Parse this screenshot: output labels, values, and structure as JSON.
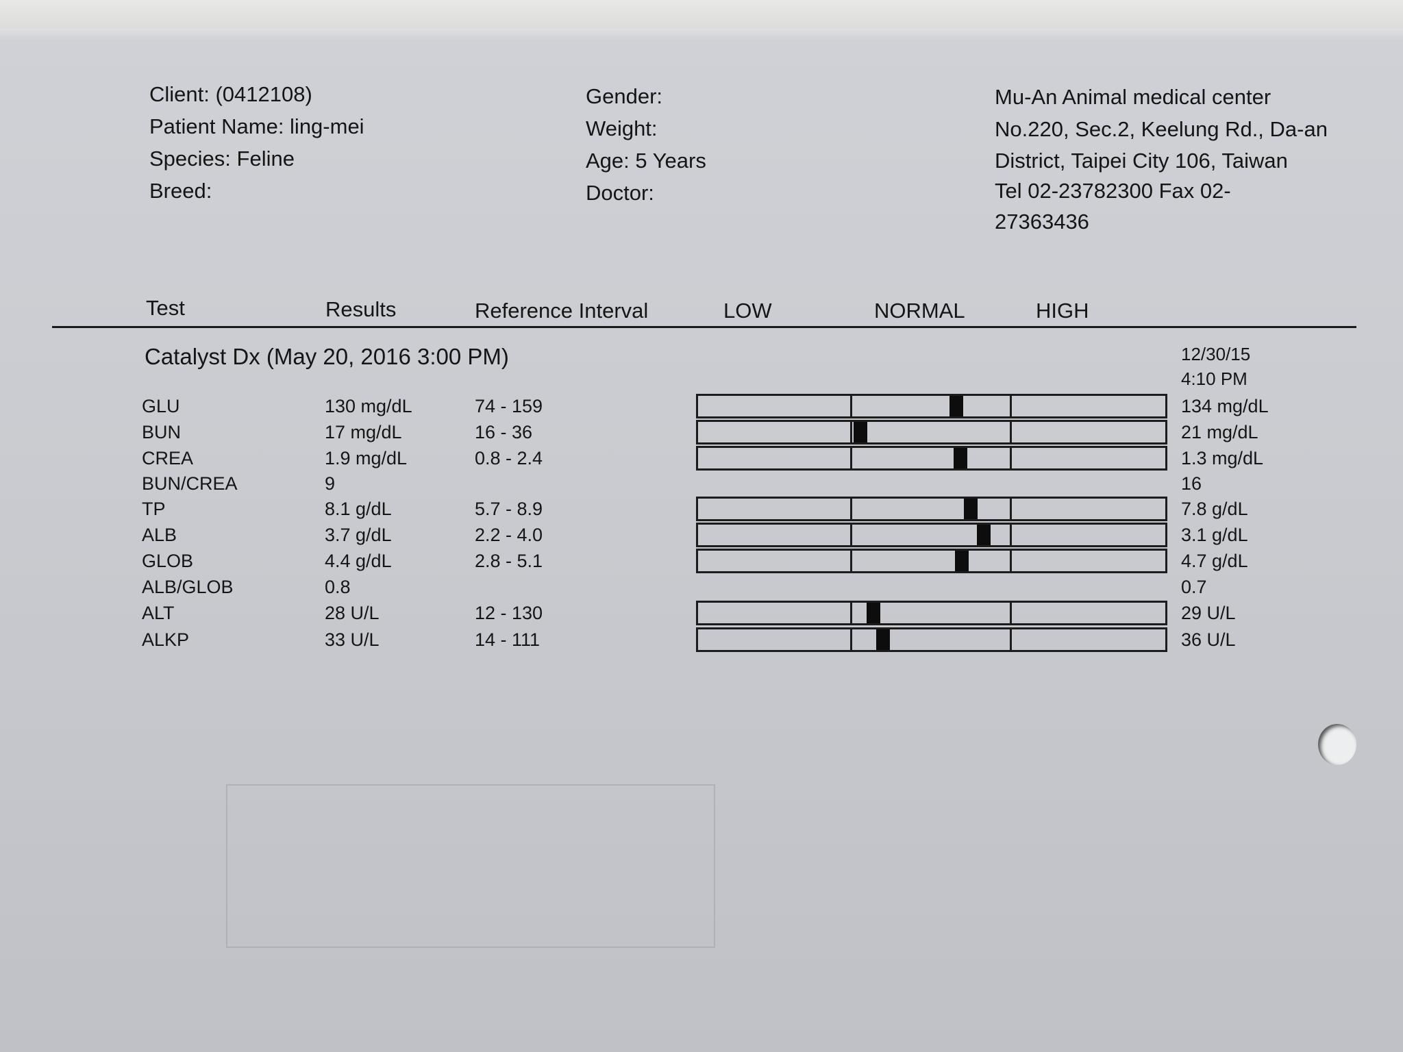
{
  "client_info": {
    "client": "Client:  (0412108)",
    "patient_name": "Patient Name:  ling-mei",
    "species": "Species:  Feline",
    "breed": "Breed:"
  },
  "patient_info": {
    "gender": "Gender:",
    "weight": "Weight:",
    "age": "Age:  5 Years",
    "doctor": "Doctor:"
  },
  "clinic": {
    "name": "Mu-An Animal medical center",
    "address_line1": "No.220, Sec.2, Keelung Rd., Da-an",
    "address_line2": "District, Taipei City 106, Taiwan",
    "phone_line": "Tel 02-23782300  Fax 02-",
    "fax_cont": "27363436"
  },
  "table_header": {
    "test": "Test",
    "results": "Results",
    "reference": "Reference Interval",
    "low": "LOW",
    "normal": "NORMAL",
    "high": "HIGH"
  },
  "panel": {
    "title": "Catalyst Dx (May 20, 2016 3:00 PM)",
    "previous_date": "12/30/15",
    "previous_time": "4:10 PM"
  },
  "rows": [
    {
      "test": "GLU",
      "result": "130 mg/dL",
      "ref": "74 - 159",
      "prev": "134 mg/dL",
      "value": 130,
      "ref_low": 74,
      "ref_high": 159
    },
    {
      "test": "BUN",
      "result": "17 mg/dL",
      "ref": "16 - 36",
      "prev": "21 mg/dL",
      "value": 17,
      "ref_low": 16,
      "ref_high": 36
    },
    {
      "test": "CREA",
      "result": "1.9 mg/dL",
      "ref": "0.8 - 2.4",
      "prev": "1.3 mg/dL",
      "value": 1.9,
      "ref_low": 0.8,
      "ref_high": 2.4
    },
    {
      "test": "BUN/CREA",
      "result": "9",
      "ref": "",
      "prev": "16"
    },
    {
      "test": "TP",
      "result": "8.1 g/dL",
      "ref": "5.7 - 8.9",
      "prev": "7.8 g/dL",
      "value": 8.1,
      "ref_low": 5.7,
      "ref_high": 8.9
    },
    {
      "test": "ALB",
      "result": "3.7 g/dL",
      "ref": "2.2 - 4.0",
      "prev": "3.1 g/dL",
      "value": 3.7,
      "ref_low": 2.2,
      "ref_high": 4.0
    },
    {
      "test": "GLOB",
      "result": "4.4 g/dL",
      "ref": "2.8 - 5.1",
      "prev": "4.7 g/dL",
      "value": 4.4,
      "ref_low": 2.8,
      "ref_high": 5.1
    },
    {
      "test": "ALB/GLOB",
      "result": "0.8",
      "ref": "",
      "prev": "0.7"
    },
    {
      "test": "ALT",
      "result": "28 U/L",
      "ref": "12 - 130",
      "prev": "29 U/L",
      "value": 28,
      "ref_low": 12,
      "ref_high": 130
    },
    {
      "test": "ALKP",
      "result": "33 U/L",
      "ref": "14 - 111",
      "prev": "36 U/L",
      "value": 33,
      "ref_low": 14,
      "ref_high": 111
    }
  ]
}
